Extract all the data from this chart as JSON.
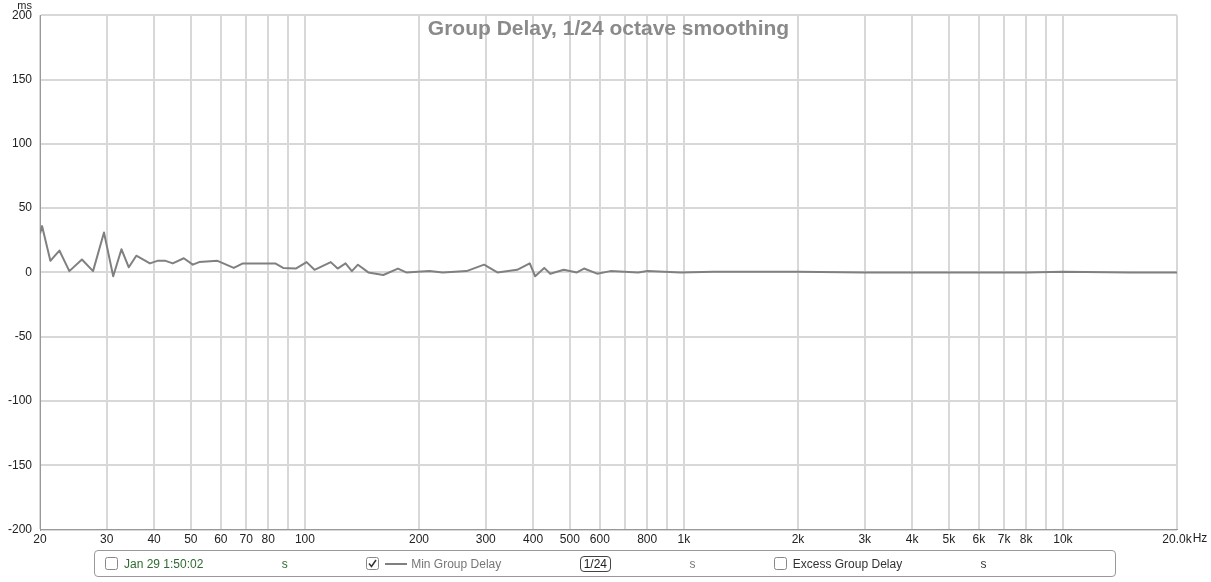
{
  "chart_data": {
    "type": "line",
    "title": "Group Delay, 1/24 octave smoothing",
    "ylabel": "ms",
    "xlabel": "Hz",
    "x": [
      20,
      20.25,
      21.3,
      22.5,
      23.9,
      25.8,
      27.6,
      29.5,
      31.2,
      32.8,
      34.3,
      35.9,
      39,
      40.8,
      42.9,
      44.8,
      47.9,
      50.6,
      52.6,
      58.8,
      64.9,
      68.6,
      75.9,
      83.5,
      87.6,
      94.6,
      101,
      106,
      117,
      122,
      128,
      133,
      138,
      147,
      161,
      176,
      185,
      213,
      231,
      267,
      297,
      322,
      363,
      392,
      405,
      428,
      444,
      482,
      522,
      545,
      590,
      640,
      757,
      802,
      980,
      1200,
      2000,
      3000,
      5000,
      8000,
      10000,
      15000,
      20000
    ],
    "series": [
      {
        "name": "Min Group Delay",
        "color": "#808080",
        "values": [
          30,
          36,
          9,
          17,
          1,
          10,
          1,
          31,
          -3,
          18,
          4,
          13,
          7,
          9,
          9,
          7,
          11,
          6,
          8,
          9,
          3.5,
          7,
          7,
          7,
          3.5,
          3,
          8,
          2,
          8,
          3,
          7,
          1,
          6,
          0,
          -2,
          3,
          0,
          1,
          0,
          1,
          6,
          0,
          2,
          7,
          -3,
          3.5,
          -1,
          2,
          0,
          3,
          -1,
          1,
          0,
          1,
          0,
          0.5,
          0.5,
          0,
          0,
          0,
          0.5,
          0,
          0
        ]
      }
    ],
    "xlim": [
      20,
      20000
    ],
    "ylim": [
      -200,
      200
    ],
    "xticks": [
      20,
      30,
      40,
      50,
      60,
      70,
      80,
      {
        "value": 90,
        "label": null
      },
      100,
      200,
      300,
      400,
      500,
      600,
      {
        "value": 700,
        "label": null
      },
      800,
      {
        "value": 900,
        "label": null
      },
      {
        "value": 1000,
        "label": "1k"
      },
      {
        "value": 2000,
        "label": "2k"
      },
      {
        "value": 3000,
        "label": "3k"
      },
      {
        "value": 4000,
        "label": "4k"
      },
      {
        "value": 5000,
        "label": "5k"
      },
      {
        "value": 6000,
        "label": "6k"
      },
      {
        "value": 7000,
        "label": "7k"
      },
      {
        "value": 8000,
        "label": "8k"
      },
      {
        "value": 9000,
        "label": null
      },
      {
        "value": 10000,
        "label": "10k"
      },
      {
        "value": 20000,
        "label": "20.0k"
      }
    ],
    "yticks": [
      -200,
      -150,
      -100,
      -50,
      0,
      50,
      100,
      150,
      200
    ],
    "log": "x",
    "grid": true,
    "legend": "bottom",
    "marker": "none",
    "line_style": "solid",
    "annotations": [
      "Jan 29 1:50:02",
      "s",
      "1/24",
      "s",
      "Excess Group Delay",
      "s"
    ]
  }
}
